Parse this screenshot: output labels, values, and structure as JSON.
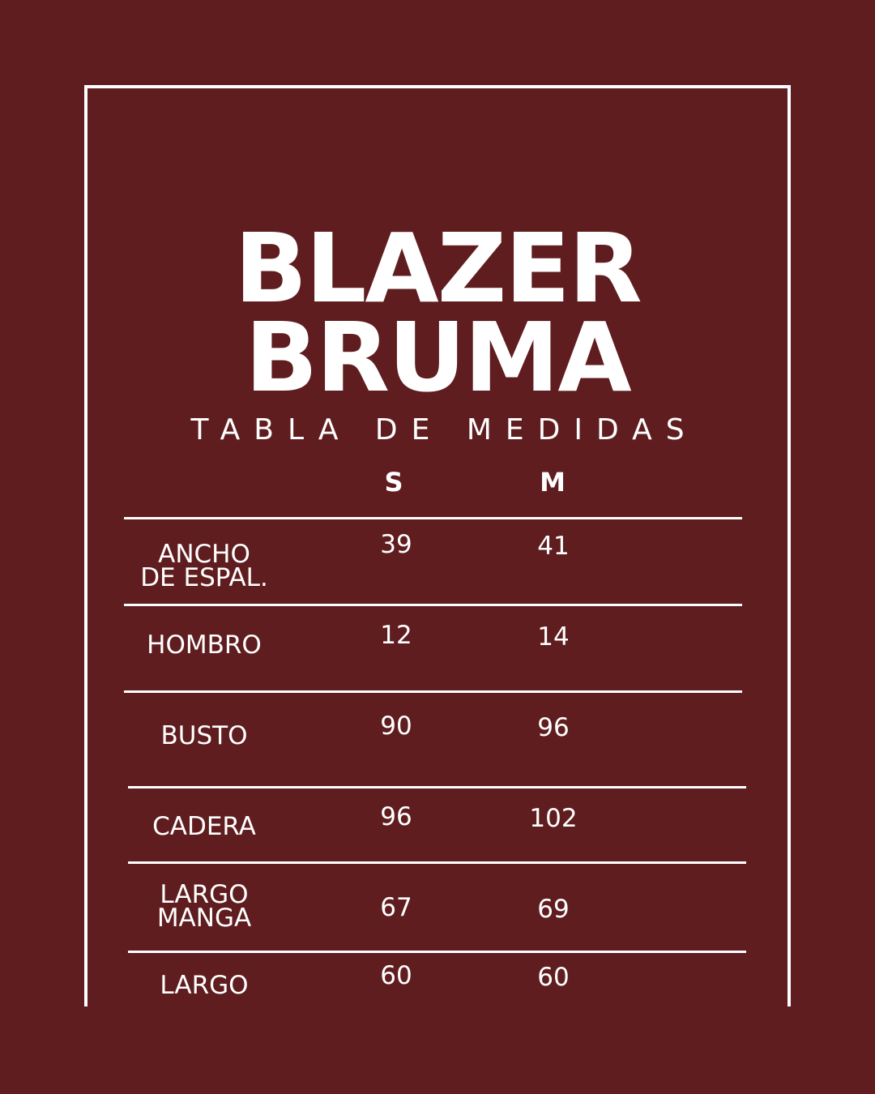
{
  "title_line1": "BLAZER",
  "title_line2": "BRUMA",
  "subtitle": "TABLA DE MEDIDAS",
  "colors": {
    "background": "#5f1d1f",
    "foreground": "#ffffff"
  },
  "table": {
    "columns": [
      "S",
      "M"
    ],
    "rows": [
      {
        "label_lines": [
          "ANCHO",
          "DE ESPAL."
        ],
        "values": [
          "39",
          "41"
        ]
      },
      {
        "label_lines": [
          "HOMBRO"
        ],
        "values": [
          "12",
          "14"
        ]
      },
      {
        "label_lines": [
          "BUSTO"
        ],
        "values": [
          "90",
          "96"
        ]
      },
      {
        "label_lines": [
          "CADERA"
        ],
        "values": [
          "96",
          "102"
        ]
      },
      {
        "label_lines": [
          "LARGO",
          "MANGA"
        ],
        "values": [
          "67",
          "69"
        ]
      },
      {
        "label_lines": [
          "LARGO"
        ],
        "values": [
          "60",
          "60"
        ]
      }
    ]
  }
}
